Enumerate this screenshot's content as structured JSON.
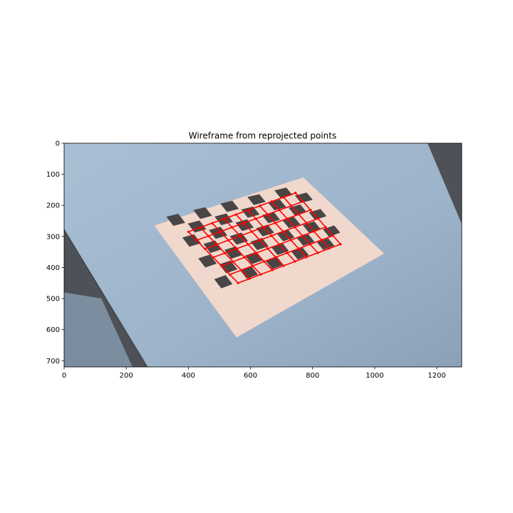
{
  "chart_data": {
    "type": "image",
    "title": "Wireframe from reprojected points",
    "xlabel": "",
    "ylabel": "",
    "xlim": [
      0,
      1280
    ],
    "ylim": [
      720,
      0
    ],
    "x_ticks": [
      0,
      200,
      400,
      600,
      800,
      1000,
      1200
    ],
    "y_ticks": [
      0,
      100,
      200,
      300,
      400,
      500,
      600,
      700
    ],
    "x_tick_labels": [
      "0",
      "200",
      "400",
      "600",
      "800",
      "1000",
      "1200"
    ],
    "y_tick_labels": [
      "0",
      "100",
      "200",
      "300",
      "400",
      "500",
      "600",
      "700"
    ],
    "grid": false,
    "background_colors": {
      "table": "#9fb6cc",
      "table_shadow": "#8fa6bd",
      "floor": "#4e5258",
      "paper": "#f1d8cc",
      "square": "#4a4545",
      "wire": "#ff0000"
    },
    "paper_corners": [
      [
        290,
        265
      ],
      [
        770,
        110
      ],
      [
        1030,
        355
      ],
      [
        555,
        625
      ]
    ],
    "checkerboard": {
      "rows": 7,
      "cols": 10,
      "outer_corners": [
        [
          325,
          235
        ],
        [
          760,
          130
        ],
        [
          915,
          315
        ],
        [
          505,
          470
        ]
      ]
    },
    "wireframe": {
      "rows": 6,
      "cols": 9,
      "corner_points": [
        [
          400,
          285
        ],
        [
          745,
          160
        ],
        [
          890,
          325
        ],
        [
          560,
          450
        ]
      ]
    }
  }
}
